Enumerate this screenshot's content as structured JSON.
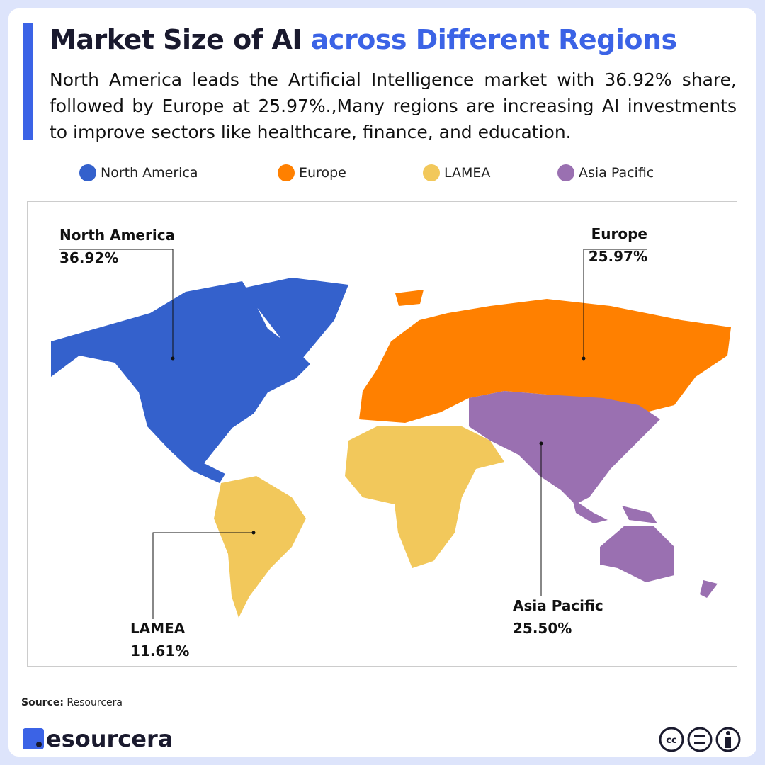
{
  "chart_data": {
    "type": "map",
    "title": "Market Size of AI",
    "title_highlight": "across Different Regions",
    "subtitle": "North America leads the Artificial Intelligence market with 36.92% share, followed by Europe at 25.97%.,Many regions are increasing AI investments to improve sectors like healthcare, finance, and education.",
    "categories": [
      "North America",
      "Europe",
      "LAMEA",
      "Asia Pacific"
    ],
    "values": [
      36.92,
      25.97,
      11.61,
      25.5
    ],
    "value_labels": [
      "36.92%",
      "25.97%",
      "11.61%",
      "25.50%"
    ],
    "colors": [
      "#3461cc",
      "#ff8000",
      "#f2c85b",
      "#9a70b1"
    ]
  },
  "source": {
    "label": "Source:",
    "text": "Resourcera"
  },
  "brand": "esourcera"
}
